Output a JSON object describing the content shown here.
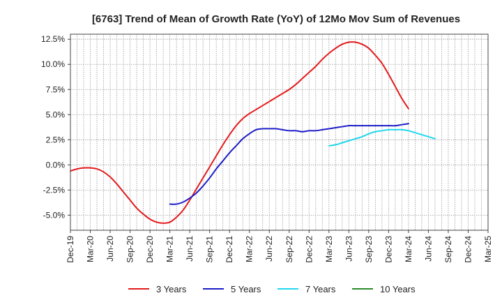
{
  "chart_data": {
    "type": "line",
    "title": "[6763]  Trend of Mean of Growth Rate (YoY) of 12Mo Mov Sum of Revenues",
    "xlabel": "",
    "ylabel": "",
    "x_ticks": [
      "Dec-19",
      "Mar-20",
      "Jun-20",
      "Sep-20",
      "Dec-20",
      "Mar-21",
      "Jun-21",
      "Sep-21",
      "Dec-21",
      "Mar-22",
      "Jun-22",
      "Sep-22",
      "Dec-22",
      "Mar-23",
      "Jun-23",
      "Sep-23",
      "Dec-23",
      "Mar-24",
      "Jun-24",
      "Sep-24",
      "Dec-24",
      "Mar-25"
    ],
    "y_ticks": [
      -5.0,
      -2.5,
      0.0,
      2.5,
      5.0,
      7.5,
      10.0,
      12.5
    ],
    "y_tick_labels": [
      "-5.0%",
      "-2.5%",
      "0.0%",
      "2.5%",
      "5.0%",
      "7.5%",
      "10.0%",
      "12.5%"
    ],
    "ylim": [
      -6.5,
      13.0
    ],
    "grid": true,
    "legend_position": "bottom",
    "series": [
      {
        "name": "3 Years",
        "color": "#e31a1c",
        "start_index": 0,
        "values": [
          -0.6,
          -0.4,
          -0.3,
          -0.3,
          -0.4,
          -0.7,
          -1.2,
          -1.9,
          -2.7,
          -3.5,
          -4.3,
          -4.9,
          -5.4,
          -5.7,
          -5.8,
          -5.7,
          -5.2,
          -4.5,
          -3.5,
          -2.4,
          -1.3,
          -0.2,
          0.9,
          2.0,
          3.0,
          3.9,
          4.6,
          5.1,
          5.5,
          5.9,
          6.3,
          6.7,
          7.1,
          7.5,
          8.0,
          8.6,
          9.2,
          9.8,
          10.5,
          11.1,
          11.6,
          12.0,
          12.2,
          12.2,
          12.0,
          11.6,
          10.9,
          10.1,
          9.0,
          7.8,
          6.6,
          5.6
        ]
      },
      {
        "name": "5 Years",
        "color": "#1c1cc8",
        "start_index": 15,
        "values": [
          -3.9,
          -3.9,
          -3.7,
          -3.3,
          -2.8,
          -2.1,
          -1.3,
          -0.4,
          0.4,
          1.2,
          1.9,
          2.6,
          3.1,
          3.5,
          3.6,
          3.6,
          3.6,
          3.5,
          3.4,
          3.4,
          3.3,
          3.4,
          3.4,
          3.5,
          3.6,
          3.7,
          3.8,
          3.9,
          3.9,
          3.9,
          3.9,
          3.9,
          3.9,
          3.9,
          3.9,
          4.0,
          4.1
        ]
      },
      {
        "name": "7 Years",
        "color": "#22d8ee",
        "start_index": 39,
        "values": [
          1.9,
          2.0,
          2.2,
          2.4,
          2.6,
          2.8,
          3.1,
          3.3,
          3.4,
          3.5,
          3.5,
          3.5,
          3.4,
          3.2,
          3.0,
          2.8,
          2.6
        ]
      },
      {
        "name": "10 Years",
        "color": "#2a8a2a",
        "start_index": 0,
        "values": []
      }
    ]
  }
}
